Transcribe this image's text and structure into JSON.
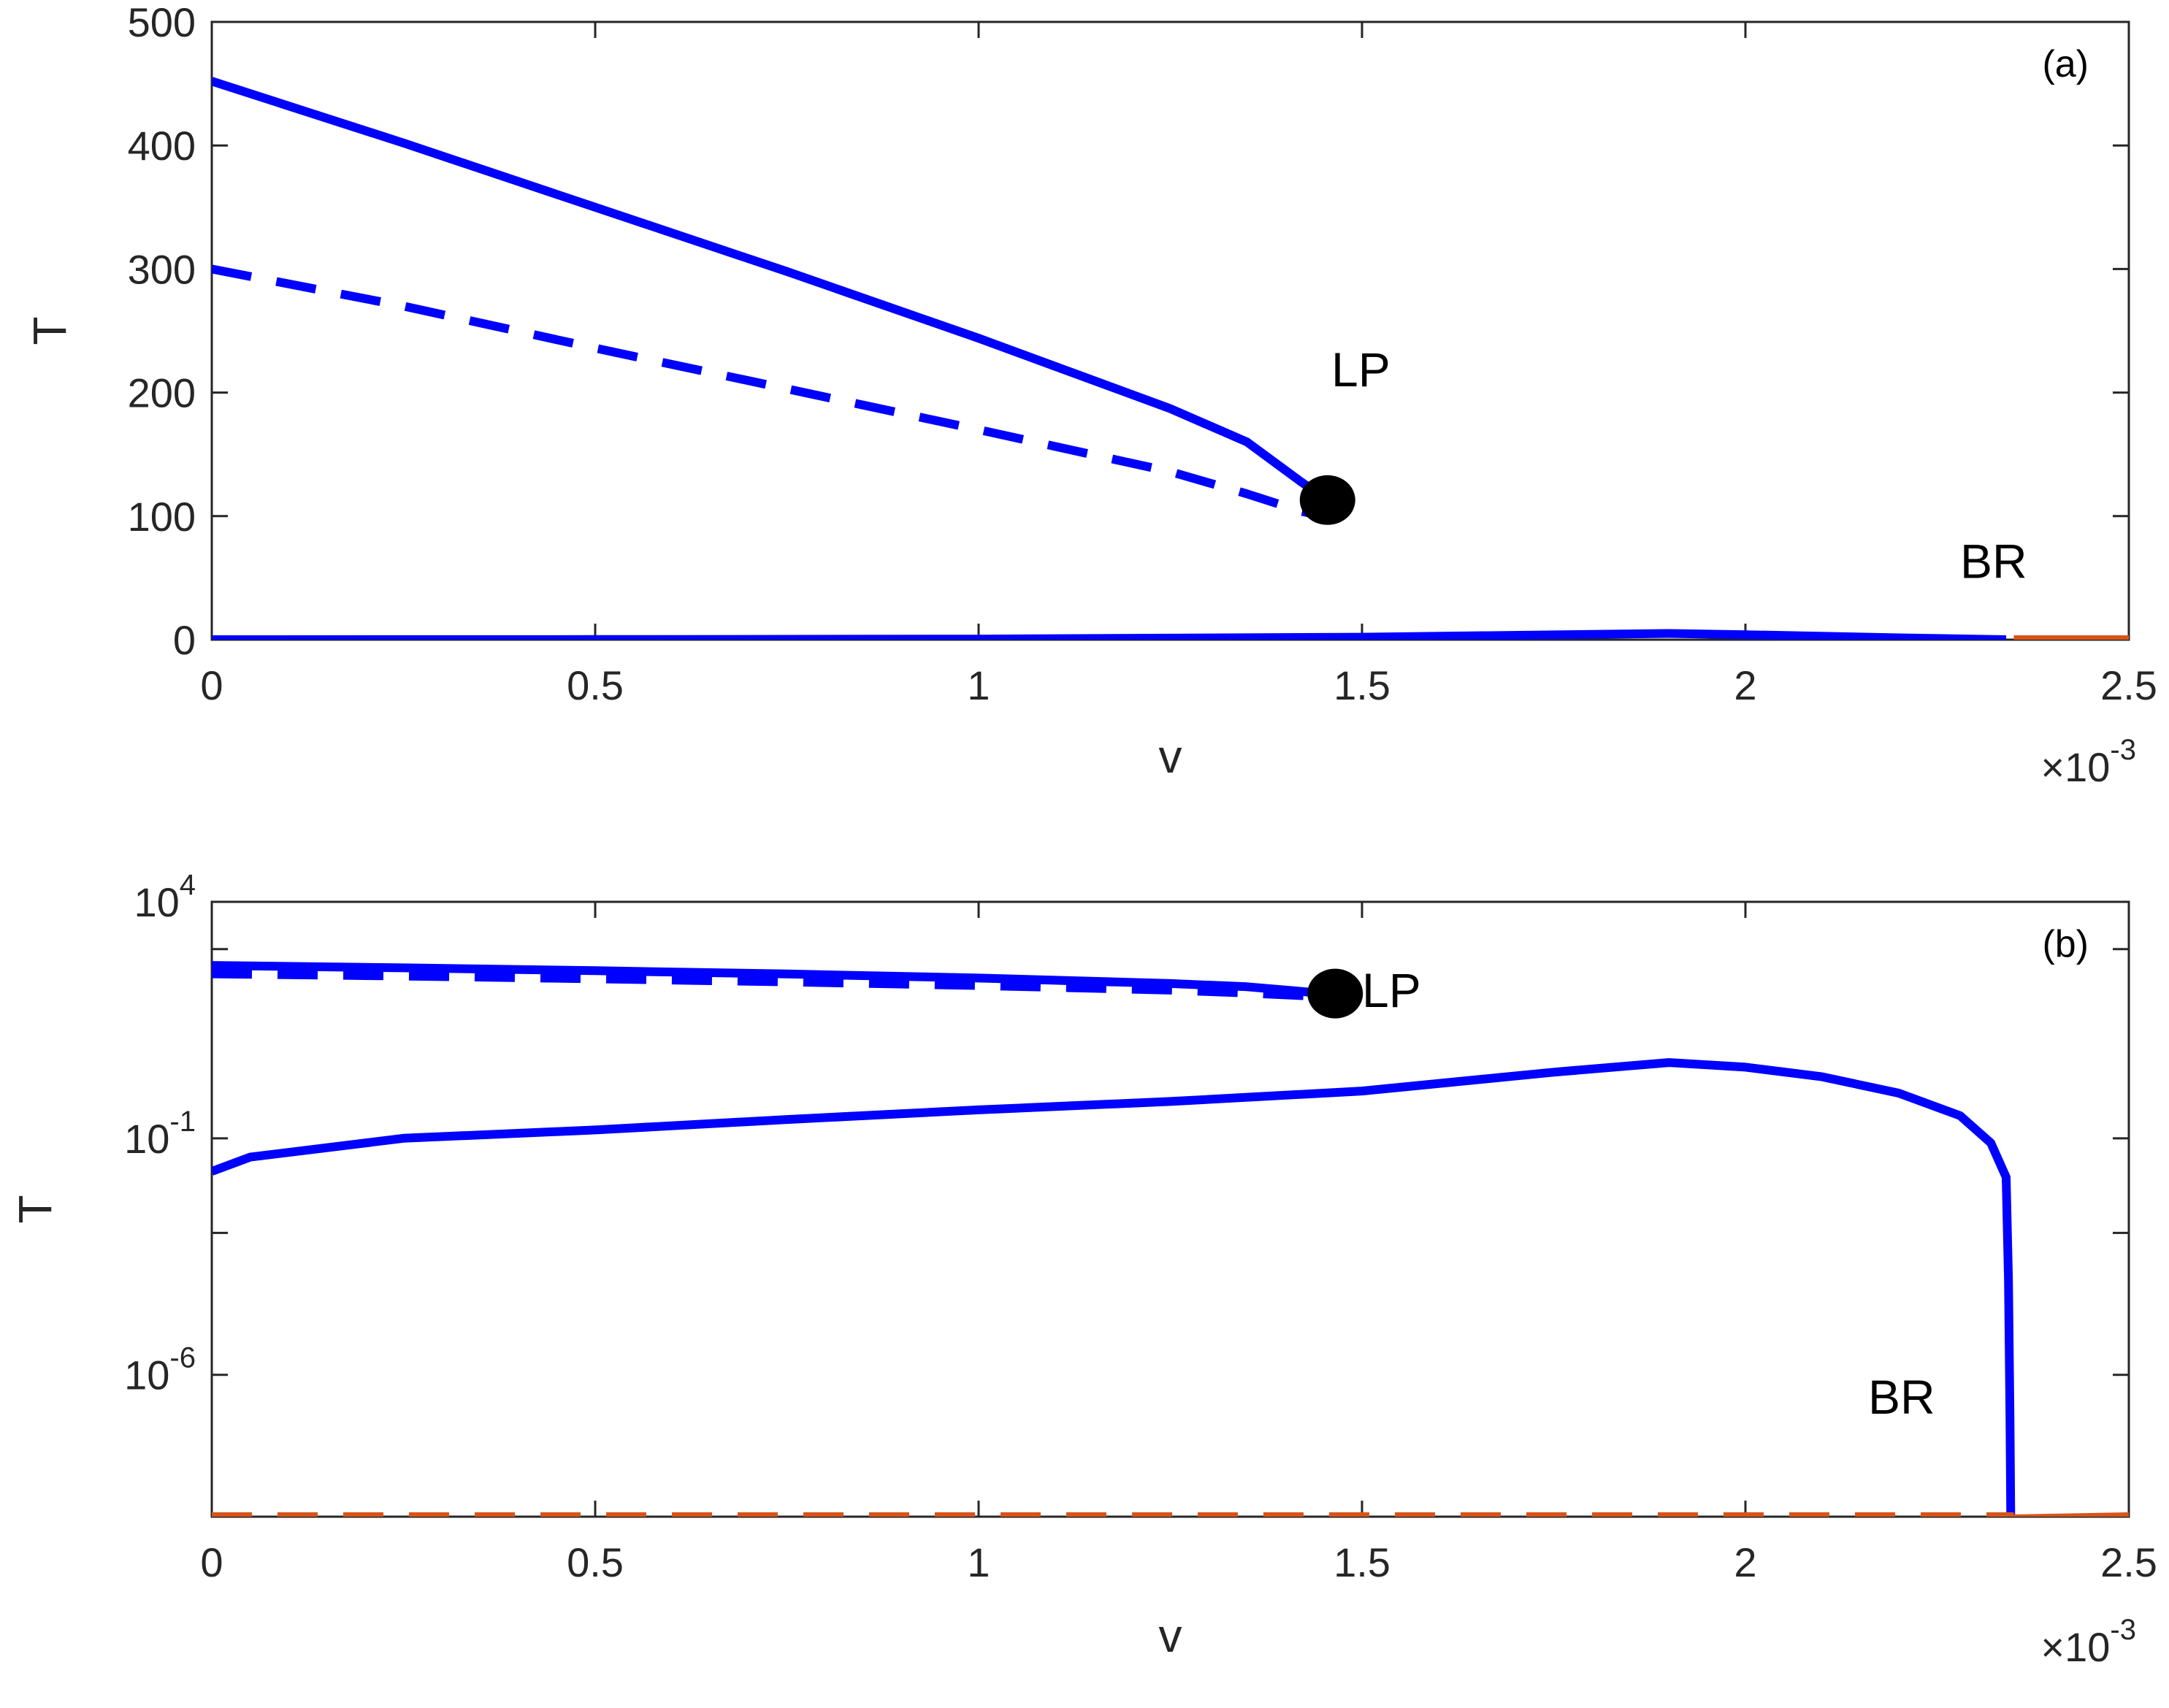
{
  "colors": {
    "blue": "#0000ff",
    "orange": "#d95319",
    "black": "#000000",
    "axis": "#262626"
  },
  "chart_data": [
    {
      "type": "line",
      "panel_label": "(a)",
      "xlabel": "v",
      "ylabel": "T",
      "x_multiplier": "×10",
      "x_multiplier_exp": "-3",
      "xlim": [
        0,
        2.5
      ],
      "ylim": [
        0,
        500
      ],
      "x_ticks": [
        0,
        0.5,
        1,
        1.5,
        2,
        2.5
      ],
      "x_tick_labels": [
        "0",
        "0.5",
        "1",
        "1.5",
        "2",
        "2.5"
      ],
      "y_ticks": [
        0,
        100,
        200,
        300,
        400,
        500
      ],
      "y_tick_labels": [
        "0",
        "100",
        "200",
        "300",
        "400",
        "500"
      ],
      "scale_y": "linear",
      "grid": false,
      "series": [
        {
          "style": "solid",
          "color": "#0000ff",
          "x": [
            0,
            0.25,
            0.5,
            0.75,
            1.0,
            1.25,
            1.35,
            1.42,
            1.45
          ],
          "y": [
            452,
            402,
            350,
            298,
            244,
            187,
            160,
            128,
            115
          ]
        },
        {
          "style": "dashed",
          "color": "#0000ff",
          "x": [
            0,
            0.25,
            0.5,
            0.75,
            1.0,
            1.25,
            1.35,
            1.42,
            1.45
          ],
          "y": [
            300,
            270,
            236,
            203,
            170,
            136,
            118,
            104,
            100
          ]
        },
        {
          "style": "solid",
          "color": "#0000ff",
          "x": [
            0,
            0.5,
            1.0,
            1.5,
            1.9,
            2.0,
            2.2,
            2.34
          ],
          "y": [
            0.02,
            0.1,
            0.5,
            2,
            5,
            4,
            1.5,
            0.0
          ]
        },
        {
          "style": "solid",
          "color": "#d95319",
          "x": [
            2.35,
            2.5
          ],
          "y": [
            0,
            0
          ]
        }
      ],
      "markers": [
        {
          "x": 1.455,
          "y": 113,
          "color": "#000000"
        }
      ],
      "annotations": [
        {
          "text": "LP",
          "x": 1.46,
          "y": 205
        },
        {
          "text": "BR",
          "x": 2.28,
          "y": 50
        }
      ]
    },
    {
      "type": "line",
      "panel_label": "(b)",
      "xlabel": "v",
      "ylabel": "T",
      "x_multiplier": "×10",
      "x_multiplier_exp": "-3",
      "xlim": [
        0,
        2.5
      ],
      "ylim": [
        1e-09,
        10000.0
      ],
      "x_ticks": [
        0,
        0.5,
        1,
        1.5,
        2,
        2.5
      ],
      "x_tick_labels": [
        "0",
        "0.5",
        "1",
        "1.5",
        "2",
        "2.5"
      ],
      "y_labeled_ticks": [
        {
          "value": 10000.0,
          "base": "10",
          "exp": "4"
        },
        {
          "value": 0.1,
          "base": "10",
          "exp": "-1"
        },
        {
          "value": 1e-06,
          "base": "10",
          "exp": "-6"
        }
      ],
      "y_minor_ticks": [
        1000.0,
        0.001
      ],
      "scale_y": "log",
      "grid": false,
      "series": [
        {
          "style": "solid",
          "color": "#0000ff",
          "x": [
            0,
            0.25,
            0.5,
            0.75,
            1.0,
            1.25,
            1.35,
            1.42,
            1.45
          ],
          "y": [
            452,
            402,
            350,
            298,
            244,
            187,
            160,
            128,
            115
          ]
        },
        {
          "style": "dashed",
          "color": "#0000ff",
          "x": [
            0,
            0.25,
            0.5,
            0.75,
            1.0,
            1.25,
            1.35,
            1.42,
            1.45
          ],
          "y": [
            300,
            270,
            236,
            203,
            170,
            136,
            118,
            104,
            100
          ]
        },
        {
          "style": "solid",
          "color": "#0000ff",
          "x": [
            0,
            0.05,
            0.25,
            0.5,
            0.75,
            1.0,
            1.25,
            1.5,
            1.75,
            1.9,
            2.0,
            2.1,
            2.2,
            2.28,
            2.32,
            2.34,
            2.343,
            2.345,
            2.346
          ],
          "y": [
            0.02,
            0.04,
            0.1,
            0.15,
            0.25,
            0.4,
            0.6,
            1.0,
            2.5,
            4.0,
            3.2,
            2.0,
            0.9,
            0.3,
            0.08,
            0.015,
            0.0001,
            1e-07,
            1e-09
          ]
        },
        {
          "style": "dashed",
          "color": "#d95319",
          "x": [
            0,
            2.35
          ],
          "y": [
            1e-09,
            1e-09
          ]
        },
        {
          "style": "solid",
          "color": "#d95319",
          "x": [
            2.35,
            2.5
          ],
          "y": [
            9e-10,
            1e-09
          ]
        }
      ],
      "markers": [
        {
          "x": 1.465,
          "y": 115,
          "color": "#000000"
        }
      ],
      "annotations": [
        {
          "text": "LP",
          "x": 1.5,
          "y": 60
        },
        {
          "text": "BR",
          "x": 2.16,
          "y": 1.5e-07
        }
      ]
    }
  ]
}
